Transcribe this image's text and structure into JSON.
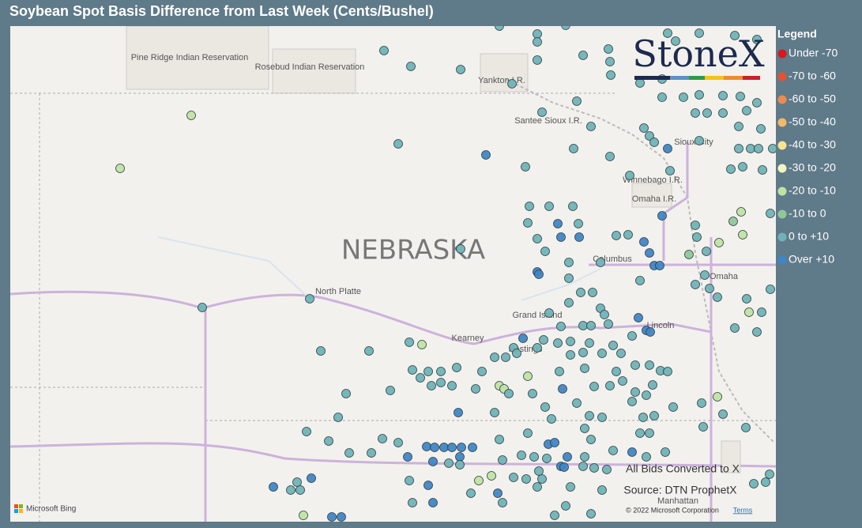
{
  "map": {
    "title": "Soybean Spot Basis Difference from Last Week (Cents/Bushel)",
    "legend": {
      "title": "Legend",
      "classes": [
        {
          "label": "Under -70",
          "color": "#d7191c"
        },
        {
          "label": "-70 to -60",
          "color": "#e4522f"
        },
        {
          "label": "-60 to -50",
          "color": "#ec8b4f"
        },
        {
          "label": "-50 to -40",
          "color": "#f3b86a"
        },
        {
          "label": "-40 to -30",
          "color": "#fbe292"
        },
        {
          "label": "-30 to -20",
          "color": "#f2f6c0"
        },
        {
          "label": "-20 to -10",
          "color": "#c0e3a4"
        },
        {
          "label": "-10 to 0",
          "color": "#8fc79a"
        },
        {
          "label": "0 to +10",
          "color": "#6fb3b7"
        },
        {
          "label": "Over +10",
          "color": "#3f86c6"
        }
      ]
    },
    "places": [
      "Pine Ridge Indian Reservation",
      "Rosebud Indian Reservation",
      "Yankton I.R.",
      "Santee Sioux I.R.",
      "Sioux City",
      "Winnebago I.R.",
      "Omaha I.R.",
      "NEBRASKA",
      "Columbus",
      "Omaha",
      "North Platte",
      "Grand Island",
      "Kearney",
      "Hastings",
      "Lincoln",
      "Manhattan"
    ],
    "logo": "StoneX",
    "note": "All Bids Converted to X",
    "source": "Source: DTN ProphetX",
    "attribution": "© 2022 Microsoft Corporation",
    "terms": "Terms",
    "provider": "Microsoft Bing",
    "points": [
      [
        -98.38,
        43.876,
        8
      ],
      [
        -97.9,
        43.796,
        8
      ],
      [
        -97.54,
        43.884,
        8
      ],
      [
        -97.9,
        43.716,
        8
      ],
      [
        -96.25,
        43.804,
        8
      ],
      [
        -96.15,
        43.724,
        8
      ],
      [
        -95.85,
        43.804,
        8
      ],
      [
        -95.4,
        43.78,
        8
      ],
      [
        -95.12,
        43.74,
        8
      ],
      [
        -99.84,
        43.628,
        8
      ],
      [
        -99.5,
        43.468,
        8
      ],
      [
        -98.87,
        43.436,
        8
      ],
      [
        -97.9,
        43.532,
        8
      ],
      [
        -97.32,
        43.58,
        8
      ],
      [
        -97.0,
        43.644,
        8
      ],
      [
        -96.98,
        43.516,
        8
      ],
      [
        -96.97,
        43.38,
        8
      ],
      [
        -96.6,
        43.3,
        8
      ],
      [
        -96.32,
        43.34,
        8
      ],
      [
        -98.22,
        43.292,
        8
      ],
      [
        -96.32,
        43.156,
        8
      ],
      [
        -96.05,
        43.156,
        8
      ],
      [
        -95.85,
        43.18,
        8
      ],
      [
        -95.55,
        43.172,
        8
      ],
      [
        -95.33,
        43.164,
        8
      ],
      [
        -95.12,
        43.1,
        8
      ],
      [
        -97.4,
        43.116,
        8
      ],
      [
        -97.84,
        43.004,
        8
      ],
      [
        -97.22,
        42.86,
        8
      ],
      [
        -102.28,
        42.972,
        6
      ],
      [
        -95.9,
        42.996,
        8
      ],
      [
        -95.75,
        42.996,
        8
      ],
      [
        -95.55,
        42.996,
        8
      ],
      [
        -95.25,
        43.02,
        8
      ],
      [
        -95.35,
        42.86,
        8
      ],
      [
        -95.07,
        42.836,
        8
      ],
      [
        -96.55,
        42.844,
        8
      ],
      [
        -96.48,
        42.764,
        8
      ],
      [
        -96.42,
        42.7,
        8
      ],
      [
        -95.85,
        42.716,
        8
      ],
      [
        -99.66,
        42.684,
        8
      ],
      [
        -97.44,
        42.636,
        8
      ],
      [
        -98.55,
        42.572,
        9
      ],
      [
        -96.98,
        42.556,
        8
      ],
      [
        -96.25,
        42.636,
        9
      ],
      [
        -95.35,
        42.636,
        8
      ],
      [
        -95.2,
        42.636,
        8
      ],
      [
        -95.1,
        42.636,
        8
      ],
      [
        -94.92,
        42.636,
        8
      ],
      [
        -103.18,
        42.436,
        6
      ],
      [
        -98.05,
        42.452,
        8
      ],
      [
        -96.22,
        42.412,
        8
      ],
      [
        -95.45,
        42.428,
        8
      ],
      [
        -95.3,
        42.452,
        8
      ],
      [
        -95.05,
        42.42,
        8
      ],
      [
        -96.73,
        42.364,
        8
      ],
      [
        -98.0,
        42.052,
        8
      ],
      [
        -97.75,
        42.052,
        8
      ],
      [
        -97.45,
        42.052,
        8
      ],
      [
        -95.32,
        41.996,
        6
      ],
      [
        -94.95,
        41.98,
        8
      ],
      [
        -98.02,
        41.884,
        8
      ],
      [
        -97.64,
        41.876,
        9
      ],
      [
        -97.38,
        41.876,
        8
      ],
      [
        -96.32,
        41.956,
        9
      ],
      [
        -95.42,
        41.9,
        7
      ],
      [
        -95.9,
        41.86,
        8
      ],
      [
        -97.9,
        41.724,
        8
      ],
      [
        -97.6,
        41.74,
        9
      ],
      [
        -97.37,
        41.74,
        9
      ],
      [
        -96.9,
        41.756,
        8
      ],
      [
        -96.75,
        41.764,
        8
      ],
      [
        -96.55,
        41.692,
        9
      ],
      [
        -95.88,
        41.74,
        8
      ],
      [
        -95.3,
        41.764,
        6
      ],
      [
        -95.6,
        41.684,
        6
      ],
      [
        -98.87,
        41.62,
        8
      ],
      [
        -97.8,
        41.596,
        8
      ],
      [
        -96.48,
        41.58,
        9
      ],
      [
        -95.98,
        41.564,
        7
      ],
      [
        -95.76,
        41.596,
        8
      ],
      [
        -97.5,
        41.484,
        8
      ],
      [
        -97.1,
        41.484,
        8
      ],
      [
        -96.42,
        41.452,
        9
      ],
      [
        -96.35,
        41.452,
        9
      ],
      [
        -97.9,
        41.388,
        9
      ],
      [
        -97.88,
        41.364,
        9
      ],
      [
        -95.78,
        41.356,
        8
      ],
      [
        -97.5,
        41.324,
        8
      ],
      [
        -96.6,
        41.3,
        8
      ],
      [
        -95.9,
        41.26,
        8
      ],
      [
        -95.72,
        41.22,
        8
      ],
      [
        -97.35,
        41.18,
        8
      ],
      [
        -97.2,
        41.18,
        8
      ],
      [
        -94.95,
        41.212,
        8
      ],
      [
        -102.14,
        41.028,
        8
      ],
      [
        -100.78,
        41.116,
        8
      ],
      [
        -97.5,
        41.076,
        8
      ],
      [
        -97.1,
        41.02,
        8
      ],
      [
        -95.62,
        41.132,
        8
      ],
      [
        -95.25,
        41.116,
        8
      ],
      [
        -97.75,
        40.972,
        8
      ],
      [
        -97.05,
        40.956,
        8
      ],
      [
        -96.62,
        40.924,
        9
      ],
      [
        -96.52,
        40.796,
        9
      ],
      [
        -95.22,
        40.98,
        6
      ],
      [
        -95.06,
        40.98,
        8
      ],
      [
        -97.6,
        40.836,
        8
      ],
      [
        -97.32,
        40.844,
        8
      ],
      [
        -97.22,
        40.844,
        8
      ],
      [
        -97.0,
        40.86,
        8
      ],
      [
        -96.7,
        40.74,
        8
      ],
      [
        -96.47,
        40.78,
        9
      ],
      [
        -95.4,
        40.82,
        8
      ],
      [
        -95.12,
        40.78,
        8
      ],
      [
        -98.08,
        40.716,
        9
      ],
      [
        -97.82,
        40.7,
        8
      ],
      [
        -97.64,
        40.668,
        8
      ],
      [
        -97.48,
        40.684,
        8
      ],
      [
        -97.24,
        40.668,
        8
      ],
      [
        -96.94,
        40.644,
        8
      ],
      [
        -99.52,
        40.676,
        8
      ],
      [
        -99.36,
        40.652,
        6
      ],
      [
        -98.2,
        40.62,
        8
      ],
      [
        -97.9,
        40.62,
        8
      ],
      [
        -100.64,
        40.588,
        8
      ],
      [
        -100.03,
        40.588,
        8
      ],
      [
        -98.44,
        40.524,
        8
      ],
      [
        -98.3,
        40.524,
        8
      ],
      [
        -98.16,
        40.564,
        8
      ],
      [
        -97.48,
        40.548,
        8
      ],
      [
        -97.32,
        40.572,
        8
      ],
      [
        -97.08,
        40.564,
        8
      ],
      [
        -96.84,
        40.564,
        8
      ],
      [
        -99.48,
        40.396,
        8
      ],
      [
        -99.28,
        40.38,
        8
      ],
      [
        -99.12,
        40.38,
        8
      ],
      [
        -98.92,
        40.42,
        8
      ],
      [
        -98.6,
        40.38,
        8
      ],
      [
        -98.02,
        40.332,
        6
      ],
      [
        -97.62,
        40.38,
        8
      ],
      [
        -97.3,
        40.412,
        8
      ],
      [
        -96.9,
        40.38,
        8
      ],
      [
        -96.66,
        40.444,
        8
      ],
      [
        -96.48,
        40.444,
        8
      ],
      [
        -96.34,
        40.388,
        8
      ],
      [
        -96.25,
        40.38,
        8
      ],
      [
        -96.44,
        40.244,
        8
      ],
      [
        -99.38,
        40.316,
        8
      ],
      [
        -99.24,
        40.236,
        8
      ],
      [
        -99.12,
        40.268,
        8
      ],
      [
        -98.98,
        40.236,
        8
      ],
      [
        -98.38,
        40.236,
        6
      ],
      [
        -98.32,
        40.204,
        6
      ],
      [
        -98.68,
        40.204,
        8
      ],
      [
        -97.58,
        40.204,
        9
      ],
      [
        -97.18,
        40.228,
        8
      ],
      [
        -96.98,
        40.236,
        8
      ],
      [
        -96.82,
        40.284,
        8
      ],
      [
        -96.66,
        40.172,
        8
      ],
      [
        -96.52,
        40.14,
        8
      ],
      [
        -100.32,
        40.156,
        8
      ],
      [
        -99.76,
        40.188,
        8
      ],
      [
        -98.26,
        40.156,
        8
      ],
      [
        -97.96,
        40.156,
        8
      ],
      [
        -97.8,
        40.02,
        8
      ],
      [
        -97.4,
        40.06,
        8
      ],
      [
        -96.7,
        40.076,
        8
      ],
      [
        -96.18,
        40.02,
        8
      ],
      [
        -95.62,
        40.124,
        6
      ],
      [
        -95.82,
        40.06,
        8
      ],
      [
        -100.42,
        39.916,
        8
      ],
      [
        -98.9,
        39.964,
        9
      ],
      [
        -98.44,
        39.964,
        8
      ],
      [
        -97.24,
        39.932,
        8
      ],
      [
        -97.08,
        39.916,
        8
      ],
      [
        -96.56,
        39.916,
        8
      ],
      [
        -96.42,
        39.932,
        8
      ],
      [
        -95.55,
        39.948,
        8
      ],
      [
        -97.72,
        39.9,
        8
      ],
      [
        -100.82,
        39.772,
        8
      ],
      [
        -98.02,
        39.756,
        8
      ],
      [
        -97.3,
        39.804,
        8
      ],
      [
        -96.6,
        39.756,
        8
      ],
      [
        -96.48,
        39.756,
        8
      ],
      [
        -95.8,
        39.82,
        8
      ],
      [
        -95.26,
        39.812,
        8
      ],
      [
        -100.54,
        39.676,
        8
      ],
      [
        -99.86,
        39.7,
        8
      ],
      [
        -99.66,
        39.66,
        8
      ],
      [
        -98.38,
        39.692,
        8
      ],
      [
        -97.76,
        39.644,
        9
      ],
      [
        -97.68,
        39.66,
        9
      ],
      [
        -97.22,
        39.692,
        8
      ],
      [
        -96.94,
        39.58,
        8
      ],
      [
        -96.7,
        39.564,
        9
      ],
      [
        -99.3,
        39.62,
        9
      ],
      [
        -99.2,
        39.612,
        9
      ],
      [
        -99.08,
        39.612,
        9
      ],
      [
        -98.98,
        39.612,
        9
      ],
      [
        -98.86,
        39.612,
        9
      ],
      [
        -98.72,
        39.612,
        9
      ],
      [
        -100.28,
        39.556,
        8
      ],
      [
        -100.0,
        39.556,
        8
      ],
      [
        -99.54,
        39.516,
        9
      ],
      [
        -98.88,
        39.516,
        9
      ],
      [
        -98.1,
        39.532,
        8
      ],
      [
        -97.94,
        39.516,
        8
      ],
      [
        -97.78,
        39.5,
        8
      ],
      [
        -97.52,
        39.516,
        9
      ],
      [
        -97.3,
        39.516,
        8
      ],
      [
        -96.52,
        39.516,
        8
      ],
      [
        -96.28,
        39.564,
        8
      ],
      [
        -99.22,
        39.468,
        9
      ],
      [
        -99.02,
        39.452,
        8
      ],
      [
        -98.88,
        39.436,
        8
      ],
      [
        -98.34,
        39.484,
        8
      ],
      [
        -97.6,
        39.42,
        9
      ],
      [
        -97.56,
        39.412,
        9
      ],
      [
        -97.32,
        39.42,
        8
      ],
      [
        -97.18,
        39.404,
        8
      ],
      [
        -97.02,
        39.388,
        8
      ],
      [
        -97.88,
        39.372,
        8
      ],
      [
        -98.64,
        39.276,
        6
      ],
      [
        -98.48,
        39.324,
        6
      ],
      [
        -98.2,
        39.308,
        8
      ],
      [
        -98.04,
        39.292,
        8
      ],
      [
        -97.84,
        39.292,
        8
      ],
      [
        -94.96,
        39.34,
        8
      ],
      [
        -95.01,
        39.26,
        8
      ],
      [
        -95.16,
        39.244,
        8
      ],
      [
        -101.24,
        39.212,
        9
      ],
      [
        -100.94,
        39.26,
        8
      ],
      [
        -100.76,
        39.3,
        9
      ],
      [
        -101.02,
        39.18,
        8
      ],
      [
        -100.9,
        39.18,
        8
      ],
      [
        -99.52,
        39.276,
        8
      ],
      [
        -99.28,
        39.228,
        9
      ],
      [
        -97.9,
        39.212,
        8
      ],
      [
        -97.48,
        39.212,
        8
      ],
      [
        -97.08,
        39.18,
        8
      ],
      [
        -98.4,
        39.148,
        9
      ],
      [
        -98.74,
        39.148,
        8
      ],
      [
        -99.48,
        39.052,
        8
      ],
      [
        -99.22,
        39.052,
        9
      ],
      [
        -98.34,
        39.052,
        8
      ],
      [
        -97.54,
        39.02,
        8
      ],
      [
        -100.86,
        38.924,
        6
      ],
      [
        -100.5,
        38.908,
        9
      ],
      [
        -100.38,
        38.908,
        9
      ],
      [
        -97.68,
        38.924,
        8
      ],
      [
        -97.22,
        38.94,
        8
      ]
    ]
  }
}
